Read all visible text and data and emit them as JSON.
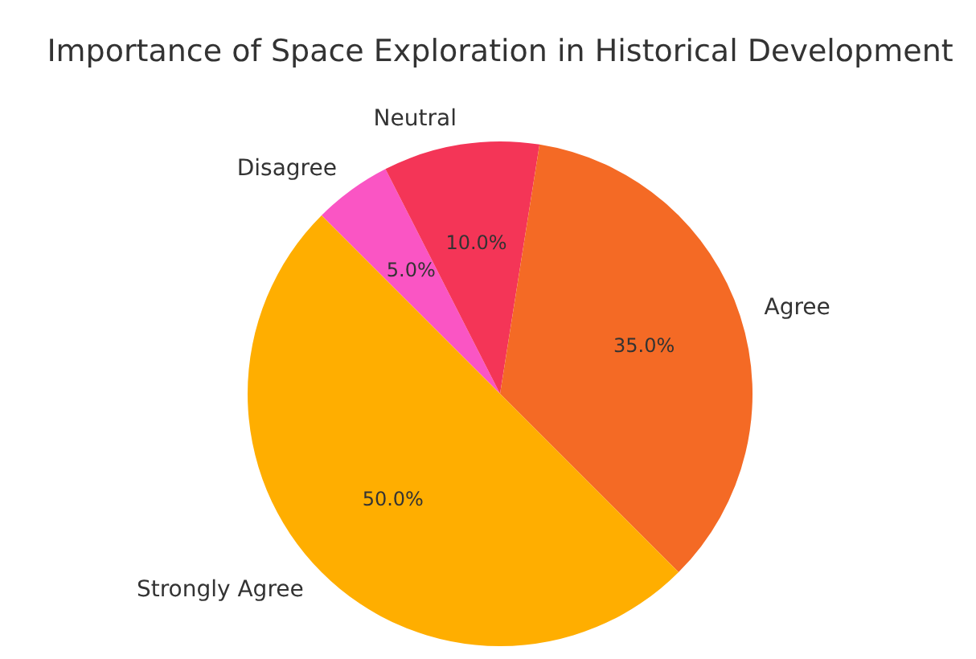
{
  "chart_data": {
    "type": "pie",
    "title": "Importance of Space Exploration in Historical Development",
    "categories": [
      "Disagree",
      "Neutral",
      "Agree",
      "Strongly Agree"
    ],
    "values": [
      5,
      10,
      35,
      50
    ],
    "colors": [
      "#fa55c4",
      "#f43557",
      "#f46a25",
      "#ffae00"
    ],
    "value_labels": [
      "5.0%",
      "10.0%",
      "35.0%",
      "50.0%"
    ],
    "legend": false
  }
}
